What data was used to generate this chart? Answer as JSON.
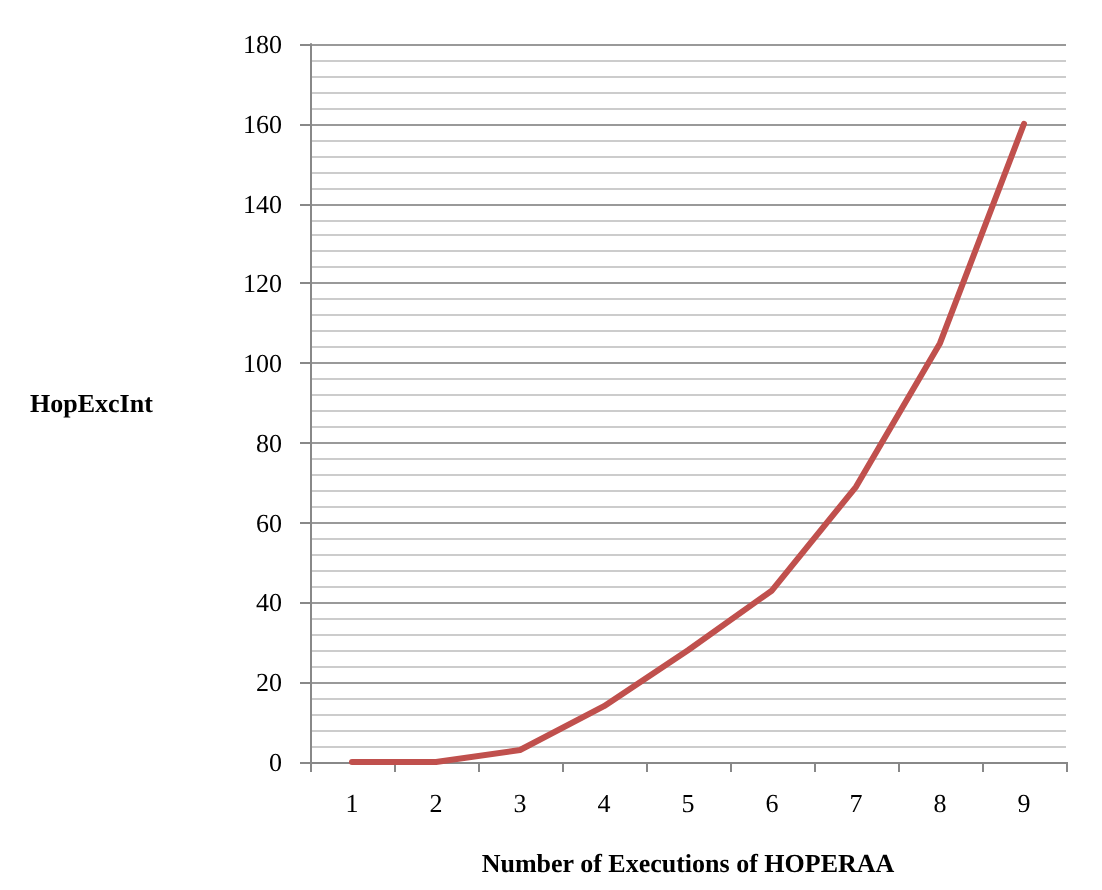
{
  "chart_data": {
    "type": "line",
    "xlabel": "Number of Executions of HOPERAA",
    "ylabel": "HopExcInt",
    "categories": [
      "1",
      "2",
      "3",
      "4",
      "5",
      "6",
      "7",
      "8",
      "9"
    ],
    "series": [
      {
        "color": "#c0504d",
        "values": [
          0,
          0,
          3,
          14,
          28,
          43,
          69,
          105,
          160
        ]
      }
    ],
    "ylim": [
      0,
      180
    ],
    "yticks": [
      0,
      20,
      40,
      60,
      80,
      100,
      120,
      140,
      160,
      180
    ],
    "grid": "y",
    "marker": "none",
    "line_style": "solid"
  }
}
